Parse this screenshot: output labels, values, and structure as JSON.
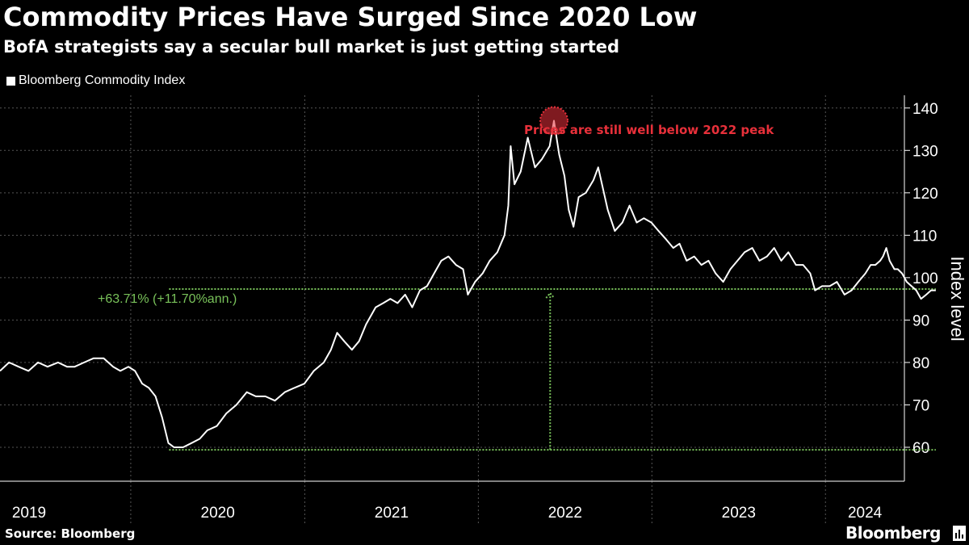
{
  "colors": {
    "background": "#000000",
    "series": "#ffffff",
    "grid": "#555555",
    "annotation": "#e8303a",
    "gain": "#79c25a"
  },
  "source": "Source: Bloomberg",
  "brand": "Bloomberg",
  "chart_data": {
    "type": "line",
    "title": "Commodity Prices Have Surged Since 2020 Low",
    "subtitle": "BofA strategists say a secular bull market is just getting started",
    "ylabel": "Index level",
    "ylim": [
      52,
      143
    ],
    "yticks": [
      60,
      70,
      80,
      90,
      100,
      110,
      120,
      130,
      140
    ],
    "xlim": [
      "2019-04-01",
      "2024-06-15"
    ],
    "xtick_labels": [
      "2019",
      "2020",
      "2021",
      "2022",
      "2023",
      "2024"
    ],
    "x_boundaries": [
      "2020-01-01",
      "2021-01-01",
      "2022-01-01",
      "2023-01-01",
      "2024-01-01"
    ],
    "grid": true,
    "legend": "top-left",
    "series": [
      {
        "name": "Bloomberg Commodity Index",
        "points": [
          [
            "2019-04-01",
            78
          ],
          [
            "2019-04-20",
            80
          ],
          [
            "2019-05-10",
            79
          ],
          [
            "2019-05-31",
            78
          ],
          [
            "2019-06-20",
            80
          ],
          [
            "2019-07-10",
            79
          ],
          [
            "2019-08-01",
            80
          ],
          [
            "2019-08-20",
            79
          ],
          [
            "2019-09-05",
            79
          ],
          [
            "2019-09-25",
            80
          ],
          [
            "2019-10-15",
            81
          ],
          [
            "2019-11-05",
            81
          ],
          [
            "2019-11-25",
            79
          ],
          [
            "2019-12-10",
            78
          ],
          [
            "2019-12-27",
            79
          ],
          [
            "2020-01-10",
            78
          ],
          [
            "2020-01-25",
            75
          ],
          [
            "2020-02-08",
            74
          ],
          [
            "2020-02-22",
            72
          ],
          [
            "2020-03-07",
            67
          ],
          [
            "2020-03-20",
            61
          ],
          [
            "2020-04-01",
            60
          ],
          [
            "2020-04-20",
            60
          ],
          [
            "2020-05-08",
            61
          ],
          [
            "2020-05-25",
            62
          ],
          [
            "2020-06-10",
            64
          ],
          [
            "2020-06-30",
            65
          ],
          [
            "2020-07-20",
            68
          ],
          [
            "2020-08-10",
            70
          ],
          [
            "2020-09-01",
            73
          ],
          [
            "2020-09-20",
            72
          ],
          [
            "2020-10-10",
            72
          ],
          [
            "2020-10-30",
            71
          ],
          [
            "2020-11-20",
            73
          ],
          [
            "2020-12-10",
            74
          ],
          [
            "2020-12-31",
            75
          ],
          [
            "2021-01-20",
            78
          ],
          [
            "2021-02-10",
            80
          ],
          [
            "2021-02-25",
            83
          ],
          [
            "2021-03-10",
            87
          ],
          [
            "2021-03-25",
            85
          ],
          [
            "2021-04-10",
            83
          ],
          [
            "2021-04-25",
            85
          ],
          [
            "2021-05-10",
            89
          ],
          [
            "2021-05-30",
            93
          ],
          [
            "2021-06-15",
            94
          ],
          [
            "2021-06-30",
            95
          ],
          [
            "2021-07-15",
            94
          ],
          [
            "2021-07-31",
            96
          ],
          [
            "2021-08-15",
            93
          ],
          [
            "2021-08-31",
            97
          ],
          [
            "2021-09-15",
            98
          ],
          [
            "2021-09-30",
            101
          ],
          [
            "2021-10-15",
            104
          ],
          [
            "2021-10-30",
            105
          ],
          [
            "2021-11-15",
            103
          ],
          [
            "2021-11-30",
            102
          ],
          [
            "2021-12-10",
            96
          ],
          [
            "2021-12-25",
            99
          ],
          [
            "2022-01-10",
            101
          ],
          [
            "2022-01-25",
            104
          ],
          [
            "2022-02-10",
            106
          ],
          [
            "2022-02-25",
            110
          ],
          [
            "2022-03-05",
            117
          ],
          [
            "2022-03-10",
            131
          ],
          [
            "2022-03-18",
            122
          ],
          [
            "2022-03-31",
            125
          ],
          [
            "2022-04-15",
            133
          ],
          [
            "2022-04-30",
            126
          ],
          [
            "2022-05-15",
            128
          ],
          [
            "2022-05-31",
            131
          ],
          [
            "2022-06-09",
            137
          ],
          [
            "2022-06-20",
            129
          ],
          [
            "2022-07-01",
            124
          ],
          [
            "2022-07-10",
            116
          ],
          [
            "2022-07-20",
            112
          ],
          [
            "2022-07-31",
            119
          ],
          [
            "2022-08-15",
            120
          ],
          [
            "2022-08-31",
            123
          ],
          [
            "2022-09-10",
            126
          ],
          [
            "2022-09-30",
            116
          ],
          [
            "2022-10-15",
            111
          ],
          [
            "2022-10-31",
            113
          ],
          [
            "2022-11-15",
            117
          ],
          [
            "2022-11-30",
            113
          ],
          [
            "2022-12-15",
            114
          ],
          [
            "2022-12-31",
            113
          ],
          [
            "2023-01-15",
            111
          ],
          [
            "2023-01-31",
            109
          ],
          [
            "2023-02-15",
            107
          ],
          [
            "2023-02-28",
            108
          ],
          [
            "2023-03-15",
            104
          ],
          [
            "2023-03-31",
            105
          ],
          [
            "2023-04-15",
            103
          ],
          [
            "2023-04-30",
            104
          ],
          [
            "2023-05-15",
            101
          ],
          [
            "2023-05-31",
            99
          ],
          [
            "2023-06-15",
            102
          ],
          [
            "2023-06-30",
            104
          ],
          [
            "2023-07-15",
            106
          ],
          [
            "2023-07-31",
            107
          ],
          [
            "2023-08-15",
            104
          ],
          [
            "2023-08-31",
            105
          ],
          [
            "2023-09-15",
            107
          ],
          [
            "2023-09-30",
            104
          ],
          [
            "2023-10-15",
            106
          ],
          [
            "2023-10-31",
            103
          ],
          [
            "2023-11-15",
            103
          ],
          [
            "2023-11-30",
            101
          ],
          [
            "2023-12-10",
            97
          ],
          [
            "2023-12-25",
            98
          ],
          [
            "2024-01-10",
            98
          ],
          [
            "2024-01-25",
            99
          ],
          [
            "2024-02-10",
            96
          ],
          [
            "2024-02-25",
            97
          ],
          [
            "2024-03-10",
            99
          ],
          [
            "2024-03-25",
            101
          ],
          [
            "2024-04-05",
            103
          ],
          [
            "2024-04-15",
            103
          ],
          [
            "2024-04-25",
            104
          ],
          [
            "2024-05-01",
            105
          ],
          [
            "2024-05-08",
            107
          ],
          [
            "2024-05-15",
            104
          ],
          [
            "2024-05-25",
            102
          ],
          [
            "2024-06-01",
            102
          ],
          [
            "2024-06-10",
            101
          ],
          [
            "2024-06-20",
            99
          ],
          [
            "2024-06-30",
            98
          ],
          [
            "2024-07-10",
            97
          ],
          [
            "2024-07-20",
            95
          ],
          [
            "2024-07-31",
            96
          ],
          [
            "2024-08-10",
            97
          ],
          [
            "2024-08-20",
            97
          ]
        ]
      }
    ],
    "annotations": [
      {
        "text": "Prices are still well below 2022 peak",
        "x": "2022-06-09",
        "y": 137
      },
      {
        "text": "+63.71% (+11.70%ann.)",
        "from": 59.4,
        "to": 97.3
      }
    ]
  }
}
